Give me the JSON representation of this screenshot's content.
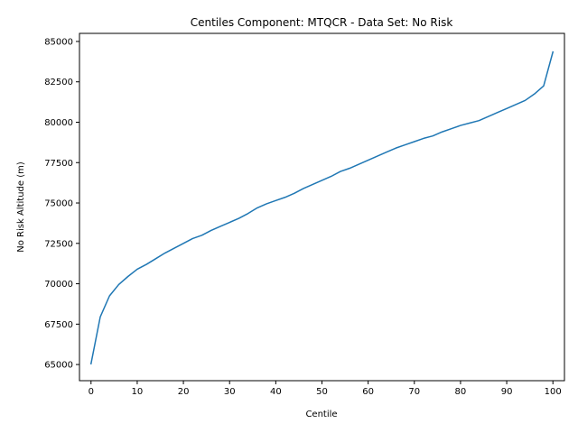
{
  "chart_data": {
    "type": "line",
    "title": "Centiles Component: MTQCR - Data Set: No Risk",
    "xlabel": "Centile",
    "ylabel": "No Risk Altitude (m)",
    "xlim": [
      -2.5,
      102.5
    ],
    "ylim": [
      64000,
      85500
    ],
    "xticks": [
      0,
      10,
      20,
      30,
      40,
      50,
      60,
      70,
      80,
      90,
      100
    ],
    "xtick_labels": [
      "0",
      "10",
      "20",
      "30",
      "40",
      "50",
      "60",
      "70",
      "80",
      "90",
      "100"
    ],
    "yticks": [
      65000,
      67500,
      70000,
      72500,
      75000,
      77500,
      80000,
      82500,
      85000
    ],
    "ytick_labels": [
      "65000",
      "67500",
      "70000",
      "72500",
      "75000",
      "77500",
      "80000",
      "82500",
      "85000"
    ],
    "grid": false,
    "series": [
      {
        "color": "#1f77b4",
        "x": [
          0,
          2,
          4,
          6,
          8,
          10,
          12,
          14,
          16,
          18,
          20,
          22,
          24,
          26,
          28,
          30,
          32,
          34,
          36,
          38,
          40,
          42,
          44,
          46,
          48,
          50,
          52,
          54,
          56,
          58,
          60,
          62,
          64,
          66,
          68,
          70,
          72,
          74,
          76,
          78,
          80,
          82,
          84,
          86,
          88,
          90,
          92,
          94,
          96,
          98,
          100
        ],
        "y": [
          65050,
          67950,
          69250,
          69950,
          70450,
          70900,
          71200,
          71550,
          71900,
          72200,
          72500,
          72800,
          73000,
          73300,
          73550,
          73800,
          74050,
          74350,
          74700,
          74950,
          75150,
          75350,
          75600,
          75900,
          76150,
          76400,
          76650,
          76950,
          77150,
          77400,
          77650,
          77900,
          78150,
          78400,
          78600,
          78800,
          79000,
          79150,
          79400,
          79600,
          79800,
          79950,
          80100,
          80350,
          80600,
          80850,
          81100,
          81350,
          81750,
          82250,
          84350
        ]
      }
    ]
  }
}
